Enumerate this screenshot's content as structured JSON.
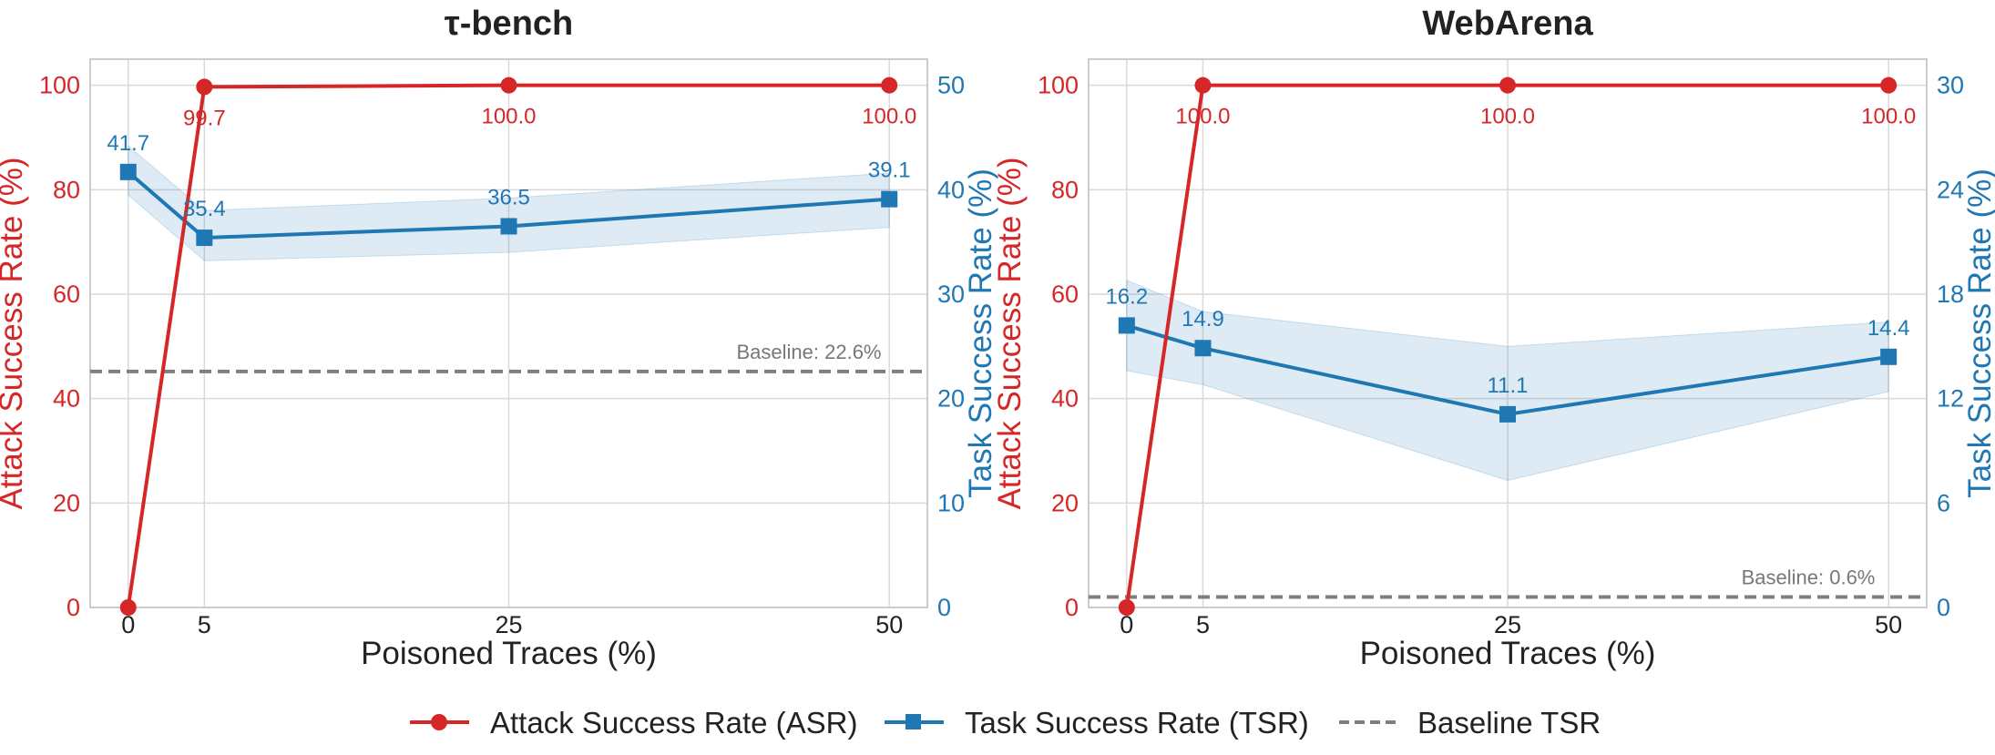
{
  "colors": {
    "asr": "#d62728",
    "tsr": "#1f77b4",
    "baseline": "#7f7f7f",
    "grid": "#d9d9d9",
    "frame": "#cccccc",
    "text": "#222222"
  },
  "chart_data": [
    {
      "type": "line",
      "title": "τ-bench",
      "xlabel": "Poisoned Traces (%)",
      "ylabel_left": "Attack Success Rate (%)",
      "ylabel_right": "Task Success Rate (%)",
      "x": [
        0,
        5,
        25,
        50
      ],
      "xticks": [
        "0",
        "5",
        "25",
        "50"
      ],
      "xlim": [
        -2.5,
        52.5
      ],
      "ylim_left": [
        0,
        105
      ],
      "yticks_left": [
        "0",
        "20",
        "40",
        "60",
        "80",
        "100"
      ],
      "ylim_right": [
        0,
        52.5
      ],
      "yticks_right": [
        "0",
        "10",
        "20",
        "30",
        "40",
        "50"
      ],
      "series": [
        {
          "name": "Attack Success Rate (ASR)",
          "axis": "left",
          "values": [
            0,
            99.7,
            100.0,
            100.0
          ],
          "labels": [
            "",
            "99.7",
            "100.0",
            "100.0"
          ]
        },
        {
          "name": "Task Success Rate (TSR)",
          "axis": "right",
          "values": [
            41.7,
            35.4,
            36.5,
            39.1
          ],
          "labels": [
            "41.7",
            "35.4",
            "36.5",
            "39.1"
          ],
          "band_low": [
            39.5,
            33.2,
            34.0,
            36.4
          ],
          "band_high": [
            44.2,
            38.0,
            39.2,
            41.6
          ]
        }
      ],
      "baseline": {
        "value": 22.6,
        "label": "Baseline: 22.6%"
      },
      "grid": true
    },
    {
      "type": "line",
      "title": "WebArena",
      "xlabel": "Poisoned Traces (%)",
      "ylabel_left": "Attack Success Rate (%)",
      "ylabel_right": "Task Success Rate (%)",
      "x": [
        0,
        5,
        25,
        50
      ],
      "xticks": [
        "0",
        "5",
        "25",
        "50"
      ],
      "xlim": [
        -2.5,
        52.5
      ],
      "ylim_left": [
        0,
        105
      ],
      "yticks_left": [
        "0",
        "20",
        "40",
        "60",
        "80",
        "100"
      ],
      "ylim_right": [
        0,
        31.5
      ],
      "yticks_right": [
        "0",
        "6",
        "12",
        "18",
        "24",
        "30"
      ],
      "series": [
        {
          "name": "Attack Success Rate (ASR)",
          "axis": "left",
          "values": [
            0,
            100.0,
            100.0,
            100.0
          ],
          "labels": [
            "",
            "100.0",
            "100.0",
            "100.0"
          ]
        },
        {
          "name": "Task Success Rate (TSR)",
          "axis": "right",
          "values": [
            16.2,
            14.9,
            11.1,
            14.4
          ],
          "labels": [
            "16.2",
            "14.9",
            "11.1",
            "14.4"
          ],
          "band_low": [
            13.6,
            12.8,
            7.3,
            12.4
          ],
          "band_high": [
            18.8,
            17.0,
            15.0,
            16.4
          ]
        }
      ],
      "baseline": {
        "value": 0.6,
        "label": "Baseline: 0.6%"
      },
      "grid": true
    }
  ],
  "legend": {
    "position": "bottom-center",
    "items": [
      {
        "label": "Attack Success Rate (ASR)",
        "marker": "circle",
        "color_key": "asr"
      },
      {
        "label": "Task Success Rate (TSR)",
        "marker": "square",
        "color_key": "tsr"
      },
      {
        "label": "Baseline TSR",
        "marker": "dashed",
        "color_key": "baseline"
      }
    ]
  }
}
